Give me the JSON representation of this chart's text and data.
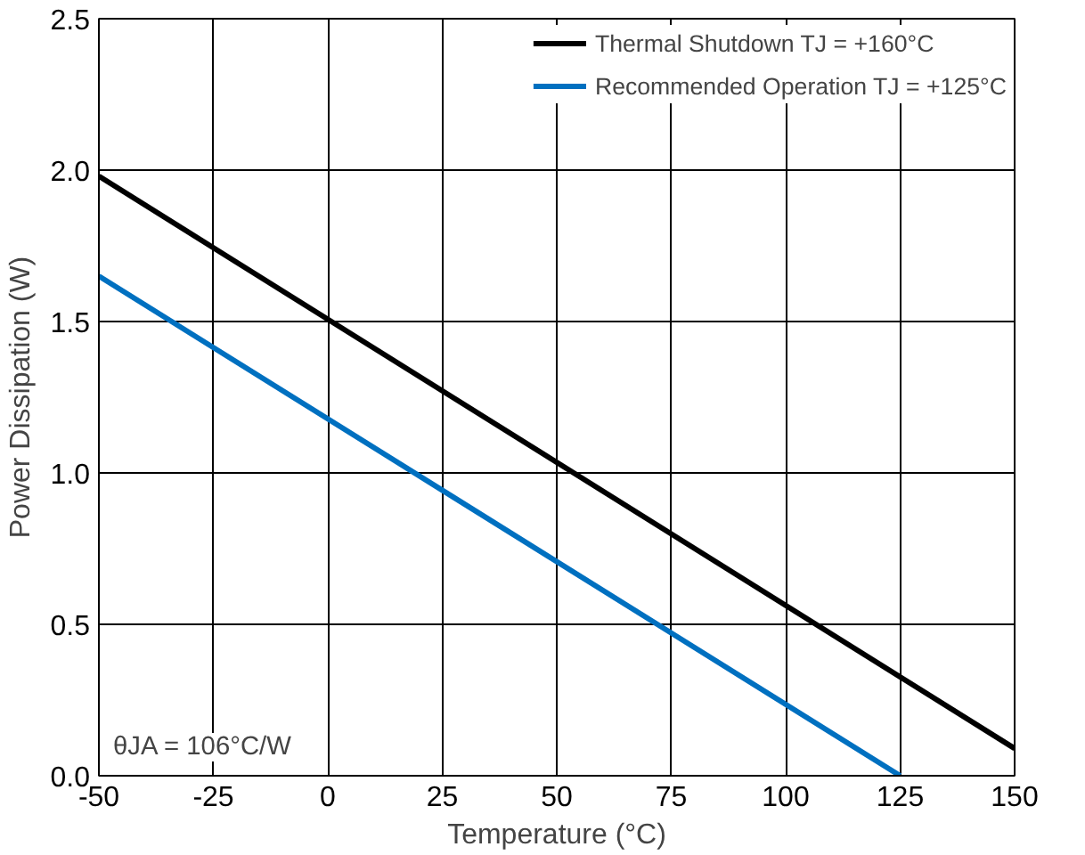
{
  "chart_data": {
    "type": "line",
    "xlabel": "Temperature (°C)",
    "ylabel": "Power Dissipation (W)",
    "series": [
      {
        "name": "Thermal Shutdown TJ = +160°C",
        "color": "#000000",
        "x": [
          -50,
          150
        ],
        "values": [
          1.98,
          0.09
        ]
      },
      {
        "name": "Recommended Operation TJ = +125°C",
        "color": "#0070c0",
        "x": [
          -50,
          125
        ],
        "values": [
          1.65,
          0.0
        ]
      }
    ],
    "xlim": [
      -50,
      150
    ],
    "xticks": [
      -50,
      -25,
      0,
      25,
      50,
      75,
      100,
      125,
      150
    ],
    "ylim": [
      0,
      2.5
    ],
    "yticks": [
      {
        "value": 0,
        "label": "0.0"
      },
      {
        "value": 0.5,
        "label": "0.5"
      },
      {
        "value": 1,
        "label": "1.0"
      },
      {
        "value": 1.5,
        "label": "1.5"
      },
      {
        "value": 2,
        "label": "2.0"
      },
      {
        "value": 2.5,
        "label": "2.5"
      }
    ],
    "annotations": [
      "θJA = 106°C/W"
    ],
    "grid": true,
    "legend": "top right",
    "marker": "none",
    "line_style": "solid"
  }
}
